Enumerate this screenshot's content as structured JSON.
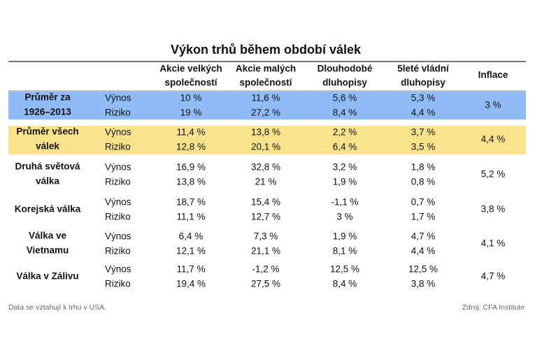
{
  "title": "Výkon trhů během období válek",
  "table": {
    "header": [
      [
        "Akcie velkých",
        "společností"
      ],
      [
        "Akcie malých",
        "společností"
      ],
      [
        "Dlouhodobé",
        "dluhopisy"
      ],
      [
        "5leté vládní",
        "dluhopisy"
      ],
      [
        "Inflace"
      ]
    ],
    "groups": [
      {
        "label": [
          "Průměr za",
          "1926–2013"
        ],
        "rows": [
          {
            "name": "Výnos",
            "values": [
              "10 %",
              "11,6 %",
              "5,6 %",
              "5,3 %"
            ]
          },
          {
            "name": "Riziko",
            "values": [
              "19 %",
              "27,2 %",
              "8,4 %",
              "4,4 %"
            ]
          }
        ],
        "inflation": "3 %"
      },
      {
        "label": [
          "Průměr všech",
          "válek"
        ],
        "rows": [
          {
            "name": "Výnos",
            "values": [
              "11,4 %",
              "13,8 %",
              "2,2 %",
              "3,7 %"
            ]
          },
          {
            "name": "Riziko",
            "values": [
              "12,8 %",
              "20,1 %",
              "6,4 %",
              "3,5 %"
            ]
          }
        ],
        "inflation": "4,4 %"
      },
      {
        "label": [
          "Druhá světová",
          "válka"
        ],
        "rows": [
          {
            "name": "Výnos",
            "values": [
              "16,9 %",
              "32,8 %",
              "3,2 %",
              "1,8 %"
            ]
          },
          {
            "name": "Riziko",
            "values": [
              "13,8 %",
              "21 %",
              "1,9 %",
              "0,8 %"
            ]
          }
        ],
        "inflation": "5,2 %"
      },
      {
        "label": [
          "Korejská válka"
        ],
        "rows": [
          {
            "name": "Výnos",
            "values": [
              "18,7 %",
              "15,4 %",
              "-1,1 %",
              "0,7 %"
            ]
          },
          {
            "name": "Riziko",
            "values": [
              "11,1 %",
              "12,7 %",
              "3 %",
              "1,7 %"
            ]
          }
        ],
        "inflation": "3,8 %"
      },
      {
        "label": [
          "Válka ve",
          "Vietnamu"
        ],
        "rows": [
          {
            "name": "Výnos",
            "values": [
              "6,4 %",
              "7,3 %",
              "1,9 %",
              "4,7 %"
            ]
          },
          {
            "name": "Riziko",
            "values": [
              "12,1 %",
              "21,1 %",
              "8,1 %",
              "4,4 %"
            ]
          }
        ],
        "inflation": "4,1 %"
      },
      {
        "label": [
          "Válka v Zálivu"
        ],
        "rows": [
          {
            "name": "Výnos",
            "values": [
              "11,7 %",
              "-1,2 %",
              "12,5 %",
              "12,5 %"
            ]
          },
          {
            "name": "Riziko",
            "values": [
              "19,4 %",
              "27,5 %",
              "8,4 %",
              "3,8 %"
            ]
          }
        ],
        "inflation": "4,7 %"
      }
    ]
  },
  "footer": {
    "note": "Data se vztahují k trhu v USA.",
    "source": "Zdroj: CFA Institute"
  }
}
